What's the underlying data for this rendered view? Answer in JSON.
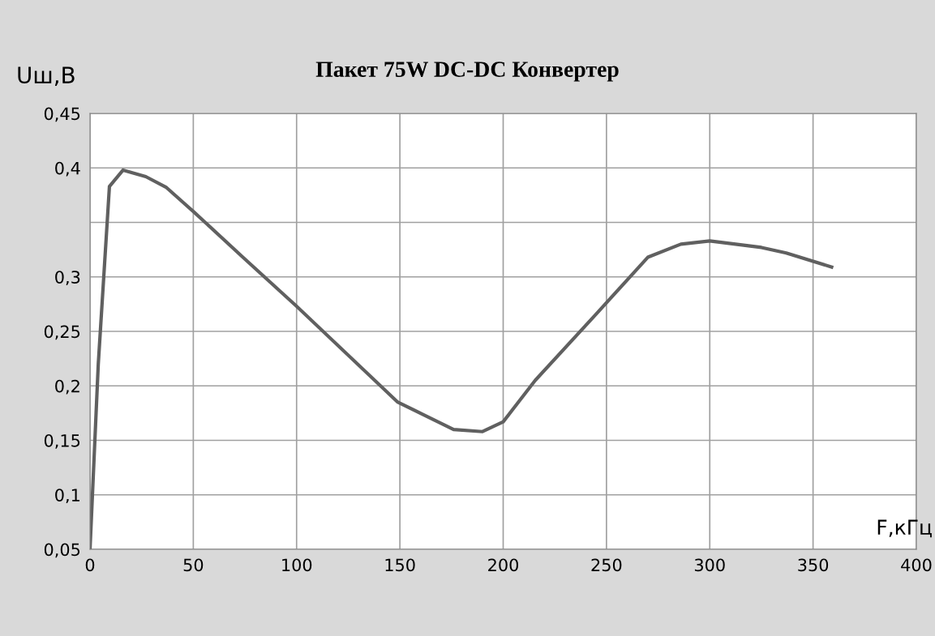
{
  "chart_data": {
    "type": "line",
    "title": "Пакет 75W DC-DC Конвертер",
    "xlabel": "F,кГц",
    "ylabel": "Uш,В",
    "x": [
      0,
      4,
      9.4,
      16,
      27,
      37,
      50.6,
      74,
      100,
      149,
      176,
      190,
      200,
      215.5,
      246,
      270,
      286,
      300,
      325,
      337,
      359
    ],
    "series": [
      {
        "color": "#606060",
        "values": [
          0.05,
          0.22,
          0.383,
          0.398,
          0.392,
          0.382,
          0.359,
          0.318,
          0.273,
          0.185,
          0.16,
          0.158,
          0.167,
          0.205,
          0.268,
          0.318,
          0.33,
          0.333,
          0.327,
          0.322,
          0.309
        ]
      }
    ],
    "xlim": [
      0,
      400
    ],
    "xticks": [
      0,
      50,
      100,
      150,
      200,
      250,
      300,
      350,
      400
    ],
    "ylim": [
      0.05,
      0.45
    ],
    "yticks": [
      {
        "value": 0.05,
        "label": "0,05"
      },
      {
        "value": 0.1,
        "label": "0,1"
      },
      {
        "value": 0.15,
        "label": "0,15"
      },
      {
        "value": 0.2,
        "label": "0,2"
      },
      {
        "value": 0.25,
        "label": "0,25"
      },
      {
        "value": 0.3,
        "label": "0,3"
      },
      {
        "value": 0.35,
        "label": null
      },
      {
        "value": 0.4,
        "label": "0,4"
      },
      {
        "value": 0.45,
        "label": "0,45"
      }
    ],
    "grid": true,
    "marker": "none",
    "line_style": "solid"
  }
}
